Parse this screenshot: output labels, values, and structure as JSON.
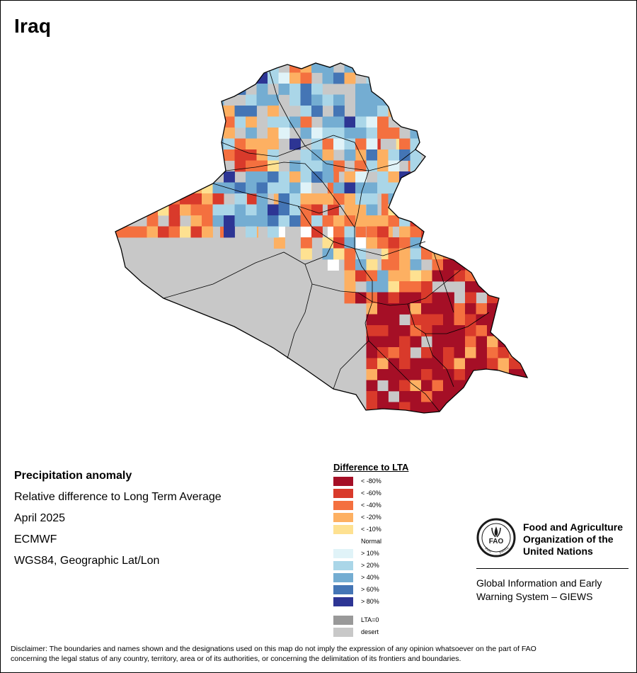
{
  "map": {
    "title": "Iraq",
    "background_color": "#ffffff",
    "desert_color": "#c8c8c8",
    "boundary_color": "#000000"
  },
  "metadata": {
    "line1": "Precipitation anomaly",
    "line2": "Relative difference to Long Term Average",
    "line3": "April 2025",
    "line4": "ECMWF",
    "line5": "WGS84, Geographic Lat/Lon"
  },
  "legend": {
    "title": "Difference to LTA",
    "classes": [
      {
        "key": "d80",
        "label": "< -80%",
        "color": "#a50f26"
      },
      {
        "key": "d60",
        "label": "< -60%",
        "color": "#d93a2b"
      },
      {
        "key": "d40",
        "label": "< -40%",
        "color": "#f4703f"
      },
      {
        "key": "d20",
        "label": "< -20%",
        "color": "#fdb062"
      },
      {
        "key": "d10",
        "label": "< -10%",
        "color": "#fee191"
      },
      {
        "key": "n",
        "label": "Normal",
        "color": "#ffffff"
      },
      {
        "key": "w10",
        "label": "> 10%",
        "color": "#e0f3f8"
      },
      {
        "key": "w20",
        "label": "> 20%",
        "color": "#aad6e8"
      },
      {
        "key": "w40",
        "label": "> 40%",
        "color": "#74add2"
      },
      {
        "key": "w60",
        "label": "> 60%",
        "color": "#4475b5"
      },
      {
        "key": "w80",
        "label": "> 80%",
        "color": "#2d3594"
      }
    ],
    "extra": [
      {
        "key": "lta0",
        "label": "LTA=0",
        "color": "#999999"
      },
      {
        "key": "desert",
        "label": "desert",
        "color": "#c8c8c8"
      }
    ]
  },
  "organization": {
    "name_line1": "Food and Agriculture",
    "name_line2": "Organization of the",
    "name_line3": "United Nations",
    "logo_text": "FAO",
    "logo_motto_left": "FIAT",
    "logo_motto_right": "PANIS",
    "system_line1": "Global Information and Early",
    "system_line2": "Warning System – GIEWS",
    "logo_color": "#1a1a1a"
  },
  "disclaimer": {
    "line1": "Disclaimer: The boundaries and names shown and the designations used on this map do not imply the expression of any opinion whatsoever on the part of FAO",
    "line2": "concerning the legal status of any country, territory, area or of its authorities, or concerning the delimitation of its frontiers and boundaries."
  },
  "grid_rows": [
    "...........r....",
    "..........fwww..",
    ".........wwvvvw.",
    "........wvvvvvvw",
    ".......wvvvvvvvv",
    ".......ovvvvvvvv",
    "......ovvvvvvvvv",
    ".....oooovvvvvvvw",
    ".....ooooooooowx",
    "....ooooooooooorr",
    "...ooooooooooorrrr",
    "..oooooooooorrrrrr",
    ".ooooooooorrrrrrr",
    "oooooooooorrrrrrr",
    "ooooooooorrrrrrrrr",
    "oooooooorrrrrrrrrr",
    "..ooooooorrrrrrrrrr",
    "...oooooorrrrrrrr",
    "....oooooorrrrrrr",
    "......ooooorrrrr"
  ]
}
